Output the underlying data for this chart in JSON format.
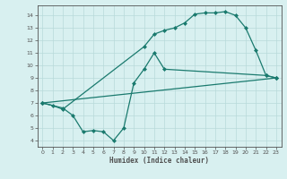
{
  "line1_x": [
    0,
    1,
    2,
    10,
    11,
    12,
    13,
    14,
    15,
    16,
    17,
    18,
    19,
    20,
    21,
    22,
    23
  ],
  "line1_y": [
    7.0,
    6.8,
    6.5,
    11.5,
    12.5,
    12.8,
    13.0,
    13.4,
    14.1,
    14.2,
    14.2,
    14.3,
    14.0,
    13.0,
    11.2,
    9.2,
    9.0
  ],
  "line2_x": [
    0,
    2,
    3,
    4,
    5,
    6,
    7,
    8,
    9,
    10,
    11,
    12,
    22,
    23
  ],
  "line2_y": [
    7.0,
    6.6,
    6.0,
    4.7,
    4.8,
    4.7,
    4.0,
    5.0,
    8.6,
    9.7,
    11.0,
    9.7,
    9.2,
    9.0
  ],
  "line3_x": [
    0,
    23
  ],
  "line3_y": [
    7.0,
    9.0
  ],
  "line_color": "#1a7a6e",
  "bg_color": "#d8f0f0",
  "grid_color": "#b8dada",
  "axis_color": "#505050",
  "xlabel": "Humidex (Indice chaleur)",
  "xlim": [
    -0.5,
    23.5
  ],
  "ylim": [
    3.5,
    14.8
  ],
  "xticks": [
    0,
    1,
    2,
    3,
    4,
    5,
    6,
    7,
    8,
    9,
    10,
    11,
    12,
    13,
    14,
    15,
    16,
    17,
    18,
    19,
    20,
    21,
    22,
    23
  ],
  "yticks": [
    4,
    5,
    6,
    7,
    8,
    9,
    10,
    11,
    12,
    13,
    14
  ],
  "marker": "D",
  "markersize": 2.0,
  "linewidth": 0.9
}
